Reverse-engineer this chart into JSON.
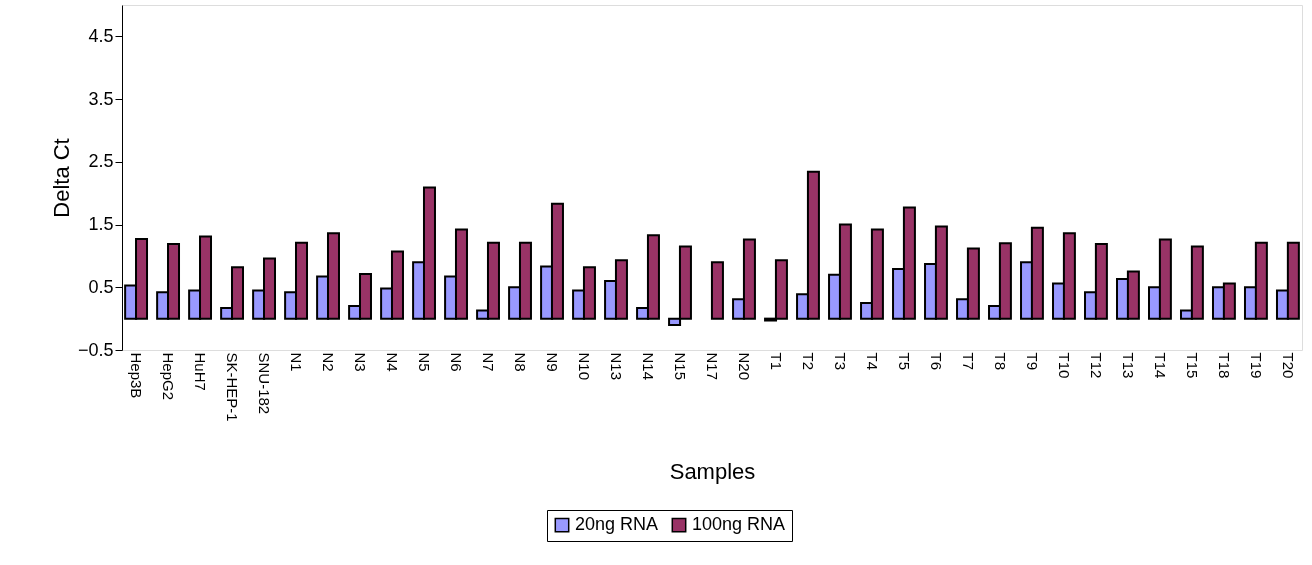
{
  "chart_data": {
    "type": "bar",
    "xlabel": "Samples",
    "ylabel": "Delta Ct",
    "categories": [
      "Hep3B",
      "HepG2",
      "HuH7",
      "SK-HEP-1",
      "SNU-182",
      "N1",
      "N2",
      "N3",
      "N4",
      "N5",
      "N6",
      "N7",
      "N8",
      "N9",
      "N10",
      "N13",
      "N14",
      "N15",
      "N17",
      "N20",
      "T1",
      "T2",
      "T3",
      "T4",
      "T5",
      "T6",
      "T7",
      "T8",
      "T9",
      "T10",
      "T12",
      "T13",
      "T14",
      "T15",
      "T18",
      "T19",
      "T20"
    ],
    "series": [
      {
        "name": "20ng RNA",
        "color": "#9999ff",
        "values": [
          0.53,
          0.42,
          0.45,
          0.17,
          0.45,
          0.42,
          0.67,
          0.2,
          0.48,
          0.9,
          0.67,
          0.13,
          0.5,
          0.83,
          0.45,
          0.6,
          0.17,
          -0.1,
          null,
          0.31,
          -0.03,
          0.39,
          0.7,
          0.25,
          0.79,
          0.87,
          0.31,
          0.2,
          0.9,
          0.56,
          0.42,
          0.63,
          0.5,
          0.13,
          0.5,
          0.5,
          0.45
        ]
      },
      {
        "name": "100ng RNA",
        "color": "#993366",
        "values": [
          1.27,
          1.19,
          1.31,
          0.82,
          0.96,
          1.21,
          1.36,
          0.71,
          1.07,
          2.09,
          1.42,
          1.21,
          1.21,
          1.83,
          0.82,
          0.93,
          1.33,
          1.15,
          0.9,
          1.26,
          0.93,
          2.34,
          1.5,
          1.42,
          1.77,
          1.47,
          1.12,
          1.2,
          1.45,
          1.36,
          1.19,
          0.75,
          1.26,
          1.15,
          0.56,
          1.21,
          1.21
        ]
      }
    ],
    "ylim": [
      -0.5,
      5
    ],
    "yticks": [
      -0.5,
      0.5,
      1.5,
      2.5,
      3.5,
      4.5
    ],
    "grid": false,
    "legend": "bottom"
  }
}
